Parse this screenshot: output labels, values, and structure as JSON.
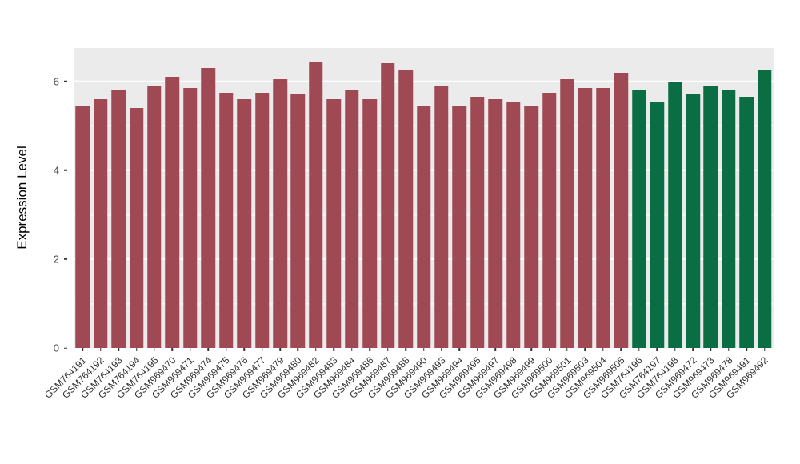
{
  "figure": {
    "background": "#ffffff",
    "panel_background": "#ebebeb",
    "grid_color": "#ffffff"
  },
  "chart_data": {
    "type": "bar",
    "title": "",
    "xlabel": "",
    "ylabel": "Expression Level",
    "ylim": [
      0,
      6.75
    ],
    "yticks": [
      0,
      2,
      4,
      6
    ],
    "yminor": [
      1,
      3,
      5
    ],
    "grid": "major+minor white on gray panel",
    "legend": "none",
    "categories": [
      "GSM764191",
      "GSM764192",
      "GSM764193",
      "GSM764194",
      "GSM764195",
      "GSM969470",
      "GSM969471",
      "GSM969474",
      "GSM969475",
      "GSM969476",
      "GSM969477",
      "GSM969479",
      "GSM969480",
      "GSM969482",
      "GSM969483",
      "GSM969484",
      "GSM969486",
      "GSM969487",
      "GSM969488",
      "GSM969490",
      "GSM969493",
      "GSM969494",
      "GSM969495",
      "GSM969497",
      "GSM969498",
      "GSM969499",
      "GSM969500",
      "GSM969501",
      "GSM969503",
      "GSM969504",
      "GSM969505",
      "GSM764196",
      "GSM764197",
      "GSM764198",
      "GSM969472",
      "GSM969473",
      "GSM969478",
      "GSM969491",
      "GSM969492"
    ],
    "values": [
      5.45,
      5.6,
      5.8,
      5.4,
      5.9,
      6.1,
      5.85,
      6.3,
      5.75,
      5.6,
      5.75,
      6.05,
      5.7,
      6.45,
      5.6,
      5.8,
      5.6,
      6.4,
      6.25,
      5.45,
      5.9,
      5.45,
      5.65,
      5.6,
      5.55,
      5.45,
      5.75,
      6.05,
      5.85,
      5.85,
      6.2,
      5.8,
      5.55,
      6.0,
      5.7,
      5.9,
      5.8,
      5.65,
      6.25
    ],
    "groups": [
      "group1",
      "group1",
      "group1",
      "group1",
      "group1",
      "group1",
      "group1",
      "group1",
      "group1",
      "group1",
      "group1",
      "group1",
      "group1",
      "group1",
      "group1",
      "group1",
      "group1",
      "group1",
      "group1",
      "group1",
      "group1",
      "group1",
      "group1",
      "group1",
      "group1",
      "group1",
      "group1",
      "group1",
      "group1",
      "group1",
      "group1",
      "group2",
      "group2",
      "group2",
      "group2",
      "group2",
      "group2",
      "group2",
      "group2"
    ],
    "color_map": {
      "group1": "#9e4953",
      "group2": "#0a6d43"
    },
    "bar_width_fraction": 0.78
  }
}
